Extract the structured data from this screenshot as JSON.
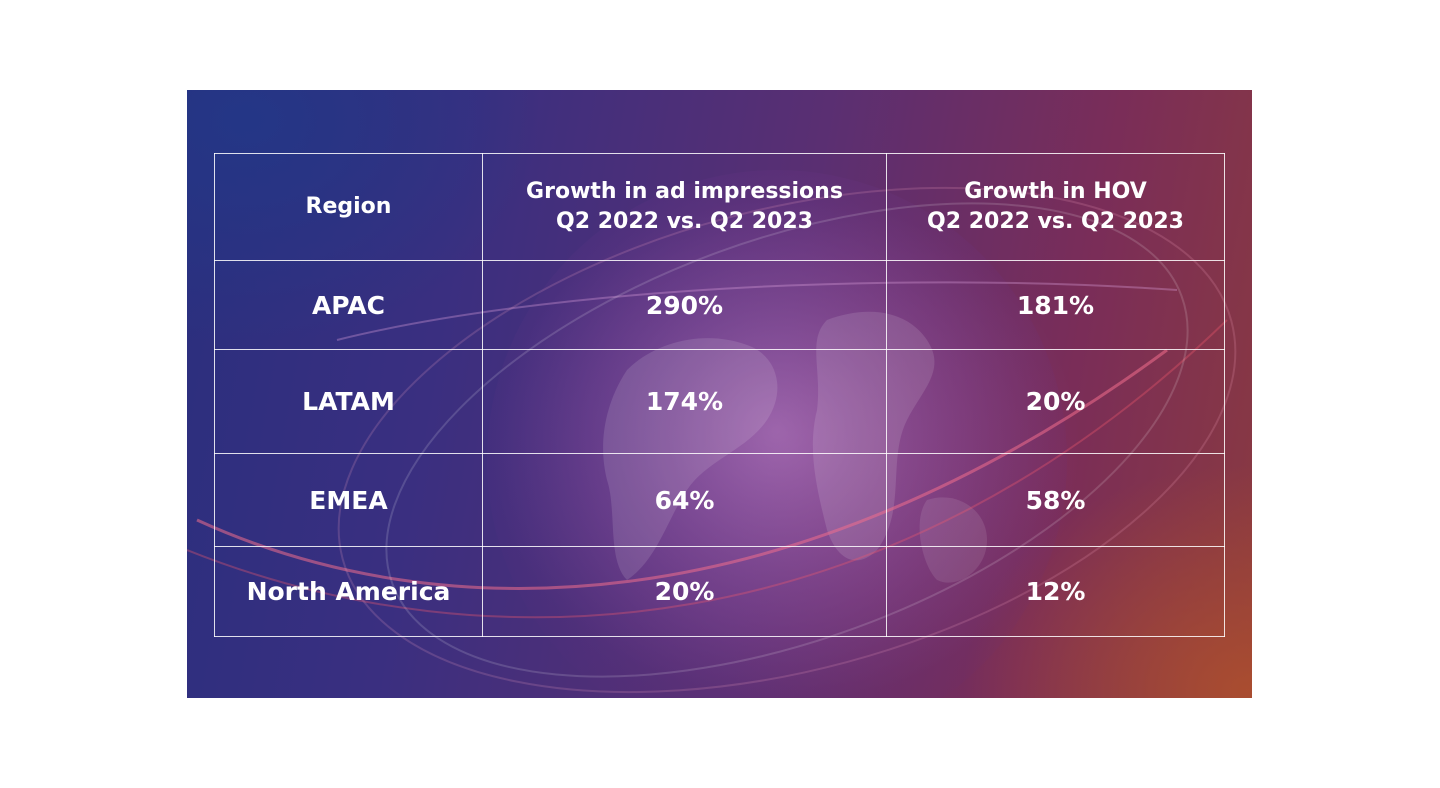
{
  "chart_data": {
    "type": "table",
    "columns": [
      {
        "key": "region",
        "label_lines": [
          "Region"
        ]
      },
      {
        "key": "ad_impressions",
        "label_lines": [
          "Growth in ad impressions",
          "Q2 2022 vs. Q2 2023"
        ]
      },
      {
        "key": "hov",
        "label_lines": [
          "Growth in HOV",
          "Q2 2022 vs. Q2 2023"
        ]
      }
    ],
    "rows": [
      {
        "region": "APAC",
        "ad_impressions": "290%",
        "hov": "181%"
      },
      {
        "region": "LATAM",
        "ad_impressions": "174%",
        "hov": "20%"
      },
      {
        "region": "EMEA",
        "ad_impressions": "64%",
        "hov": "58%"
      },
      {
        "region": "North America",
        "ad_impressions": "20%",
        "hov": "12%"
      }
    ]
  },
  "colors": {
    "text": "#ffffff",
    "grid": "#ffffff",
    "background_left": "#2a2f7e",
    "background_right": "#8a3a40",
    "accent_orange": "#b0502d"
  }
}
